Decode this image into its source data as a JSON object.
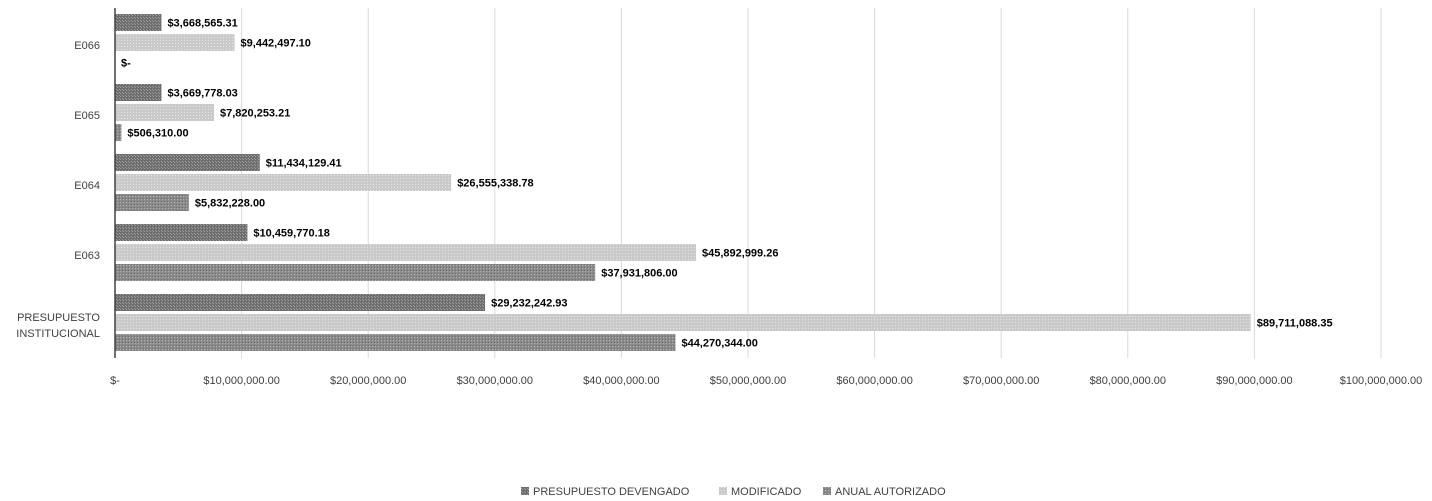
{
  "chart_data": {
    "type": "bar",
    "orientation": "horizontal",
    "categories": [
      "E066",
      "E065",
      "E064",
      "E063",
      "PRESUPUESTO INSTITUCIONAL"
    ],
    "category_lines": [
      [
        "E066"
      ],
      [
        "E065"
      ],
      [
        "E064"
      ],
      [
        "E063"
      ],
      [
        "PRESUPUESTO",
        "INSTITUCIONAL"
      ]
    ],
    "series": [
      {
        "name": "PRESUPUESTO DEVENGADO",
        "color": "#7a7a7a",
        "values": [
          3668565.31,
          3669778.03,
          11434129.41,
          10459770.18,
          29232242.93
        ],
        "labels": [
          "$3,668,565.31",
          "$3,669,778.03",
          "$11,434,129.41",
          "$10,459,770.18",
          "$29,232,242.93"
        ]
      },
      {
        "name": "MODIFICADO",
        "color": "#c8c8c8",
        "values": [
          9442497.1,
          7820253.21,
          26555338.78,
          45892999.26,
          89711088.35
        ],
        "labels": [
          "$9,442,497.10",
          "$7,820,253.21",
          "$26,555,338.78",
          "$45,892,999.26",
          "$89,711,088.35"
        ]
      },
      {
        "name": "ANUAL AUTORIZADO",
        "color": "#8f8f8f",
        "values": [
          0,
          506310.0,
          5832228.0,
          37931806.0,
          44270344.0
        ],
        "labels": [
          "$-",
          "$506,310.00",
          "$5,832,228.00",
          "$37,931,806.00",
          "$44,270,344.00"
        ]
      }
    ],
    "xlim": [
      0,
      100000000
    ],
    "x_ticks": [
      0,
      10000000,
      20000000,
      30000000,
      40000000,
      50000000,
      60000000,
      70000000,
      80000000,
      90000000,
      100000000
    ],
    "x_tick_labels": [
      "$-",
      "$10,000,000.00",
      "$20,000,000.00",
      "$30,000,000.00",
      "$40,000,000.00",
      "$50,000,000.00",
      "$60,000,000.00",
      "$70,000,000.00",
      "$80,000,000.00",
      "$90,000,000.00",
      "$100,000,000.00"
    ],
    "grid": true,
    "legend": "bottom-center",
    "title": "",
    "xlabel": "",
    "ylabel": ""
  }
}
